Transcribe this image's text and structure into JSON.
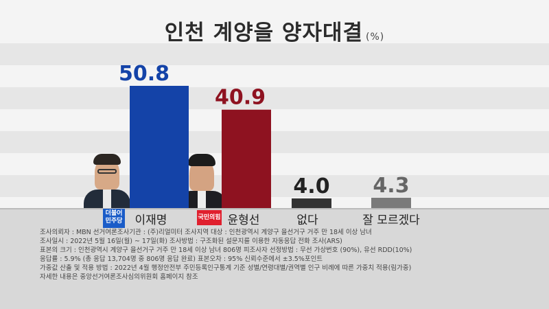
{
  "title": "인천 계양을 양자대결",
  "unit": "(%)",
  "chart_data": {
    "type": "bar",
    "categories": [
      "이재명",
      "윤형선",
      "없다",
      "잘 모르겠다"
    ],
    "values": [
      50.8,
      40.9,
      4.0,
      4.3
    ],
    "value_labels": [
      "50.8",
      "40.9",
      "4.0",
      "4.3"
    ],
    "colors": [
      "#1443a8",
      "#8e1220",
      "#333333",
      "#7a7a7a"
    ],
    "label_colors": [
      "#1443a8",
      "#8e1220",
      "#222222",
      "#666666"
    ],
    "title": "인천 계양을 양자대결",
    "ylim": [
      0,
      60
    ]
  },
  "party_badges": {
    "democratic": "더불어민주당",
    "ppp": "국민의힘"
  },
  "notes": [
    "조사의뢰자 : MBN      선거여론조사기관 : (주)리얼미터      조사지역 대상 : 인천광역시 계양구 을선거구 거주 만 18세 이상 남녀",
    "조사일시 : 2022년 5월 16일(월) ~ 17일(화)      조사방법 : 구조화된 설문지를 이용한 자동응답 전화 조사(ARS)",
    "표본의 크기 : 인천광역시 계양구 을선거구 거주 만 18세 이상 남녀 806명      피조사자 선정방법 : 무선 가상번호 (90%), 유선 RDD(10%)",
    "응답률 : 5.9% (총 응답 13,704명 중 806명 응답 완료)      표본오차 : 95% 신뢰수준에서 ±3.5%포인트",
    "가중값 산출 및 적용 방법 : 2022년 4월 행정안전부 주민등록인구통계 기준 성별/연령대별/권역별 인구 비례에 따른 가중치 적용(림가중)",
    "자세한 내용은 중앙선거여론조사심의위원회 홈페이지 참조"
  ]
}
